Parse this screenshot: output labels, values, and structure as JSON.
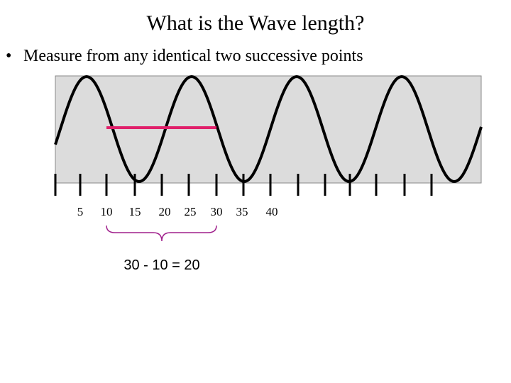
{
  "title": "What is the Wave length?",
  "bullet": "Measure from any identical two successive points",
  "scale_labels": [
    "5",
    "10",
    "15",
    "20",
    "25",
    "30",
    "35",
    "40"
  ],
  "brace_label": "30 - 10 = 20"
}
